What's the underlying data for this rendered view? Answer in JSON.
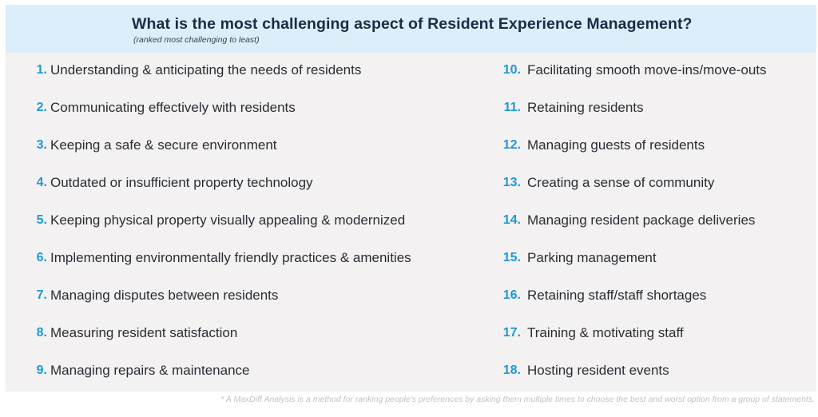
{
  "header": {
    "title": "What is the most challenging aspect of Resident Experience Management?",
    "subtitle": "(ranked most challenging to least)"
  },
  "items_left": [
    {
      "num": "1.",
      "label": "Understanding & anticipating the needs of residents"
    },
    {
      "num": "2.",
      "label": "Communicating effectively with residents"
    },
    {
      "num": "3.",
      "label": "Keeping a safe & secure environment"
    },
    {
      "num": "4.",
      "label": "Outdated or insufficient property technology"
    },
    {
      "num": "5.",
      "label": "Keeping physical property visually appealing & modernized"
    },
    {
      "num": "6.",
      "label": "Implementing environmentally friendly practices & amenities"
    },
    {
      "num": "7.",
      "label": "Managing disputes between residents"
    },
    {
      "num": "8.",
      "label": "Measuring resident satisfaction"
    },
    {
      "num": "9.",
      "label": "Managing repairs & maintenance"
    }
  ],
  "items_right": [
    {
      "num": "10.",
      "label": "Facilitating smooth move-ins/move-outs"
    },
    {
      "num": "11.",
      "label": "Retaining residents"
    },
    {
      "num": "12.",
      "label": "Managing guests of residents"
    },
    {
      "num": "13.",
      "label": "Creating a sense of community"
    },
    {
      "num": "14.",
      "label": "Managing resident package deliveries"
    },
    {
      "num": "15.",
      "label": "Parking management"
    },
    {
      "num": "16.",
      "label": "Retaining staff/staff shortages"
    },
    {
      "num": "17.",
      "label": "Training & motivating staff"
    },
    {
      "num": "18.",
      "label": "Hosting resident events"
    }
  ],
  "footnote": "* A MaxDiff Analysis is a method for ranking people's preferences by asking them multiple times to choose the best and worst option from a group of statements.",
  "colors": {
    "header_bg": "#dbeef9",
    "panel_bg": "#f3f1f2",
    "number_accent": "#1b9ad6",
    "title_text": "#1f2a44"
  }
}
